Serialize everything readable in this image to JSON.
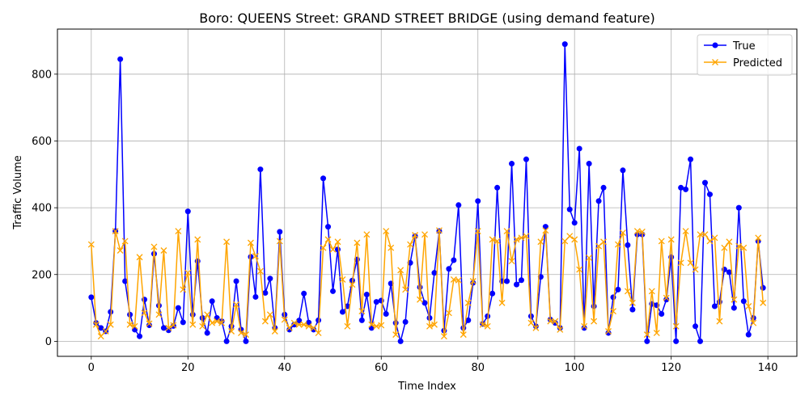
{
  "colors": {
    "true_series": "#0000ff",
    "predicted_series": "#ffa500",
    "grid": "#b0b0b0"
  },
  "chart_data": {
    "type": "line",
    "title": "Boro: QUEENS Street: GRAND STREET BRIDGE (using demand feature)",
    "xlabel": "Time Index",
    "ylabel": "Traffic Volume",
    "xlim": [
      -7,
      146
    ],
    "ylim": [
      -45,
      935
    ],
    "xticks": [
      0,
      20,
      40,
      60,
      80,
      100,
      120,
      140
    ],
    "yticks": [
      0,
      200,
      400,
      600,
      800
    ],
    "grid": true,
    "legend_position": "top-right",
    "series": [
      {
        "name": "True",
        "marker": "circle",
        "color": "#0000ff",
        "values": [
          132,
          55,
          40,
          30,
          88,
          330,
          845,
          180,
          80,
          35,
          15,
          125,
          48,
          262,
          107,
          40,
          33,
          46,
          100,
          57,
          389,
          80,
          240,
          70,
          25,
          120,
          70,
          60,
          0,
          45,
          180,
          35,
          0,
          253,
          133,
          515,
          145,
          188,
          40,
          328,
          80,
          35,
          50,
          62,
          143,
          56,
          35,
          63,
          488,
          343,
          150,
          275,
          88,
          105,
          182,
          245,
          63,
          140,
          40,
          118,
          122,
          82,
          173,
          55,
          0,
          58,
          235,
          315,
          162,
          115,
          70,
          205,
          330,
          32,
          217,
          243,
          408,
          40,
          63,
          175,
          420,
          52,
          75,
          143,
          460,
          180,
          180,
          532,
          170,
          183,
          545,
          75,
          45,
          193,
          343,
          65,
          55,
          40,
          890,
          395,
          355,
          577,
          40,
          532,
          105,
          420,
          460,
          25,
          132,
          155,
          512,
          288,
          95,
          320,
          320,
          0,
          112,
          108,
          82,
          125,
          252,
          0,
          460,
          455,
          545,
          45,
          0,
          475,
          440,
          105,
          118,
          215,
          207,
          100,
          400,
          120,
          20,
          70,
          300,
          160
        ]
      },
      {
        "name": "Predicted",
        "marker": "x",
        "color": "#ffa500",
        "values": [
          290,
          50,
          15,
          30,
          50,
          330,
          272,
          300,
          50,
          45,
          252,
          85,
          53,
          283,
          80,
          272,
          40,
          48,
          330,
          155,
          205,
          50,
          305,
          45,
          80,
          55,
          60,
          55,
          298,
          30,
          110,
          25,
          20,
          295,
          255,
          210,
          60,
          80,
          30,
          300,
          65,
          40,
          55,
          50,
          50,
          45,
          40,
          25,
          280,
          305,
          275,
          298,
          185,
          45,
          170,
          295,
          90,
          320,
          50,
          45,
          48,
          330,
          280,
          20,
          213,
          155,
          290,
          318,
          125,
          320,
          45,
          50,
          332,
          15,
          85,
          185,
          183,
          20,
          115,
          180,
          330,
          50,
          45,
          305,
          300,
          115,
          330,
          240,
          305,
          310,
          315,
          55,
          40,
          298,
          332,
          60,
          60,
          35,
          300,
          315,
          305,
          215,
          45,
          250,
          60,
          285,
          298,
          30,
          90,
          290,
          325,
          150,
          115,
          330,
          328,
          20,
          150,
          25,
          300,
          130,
          305,
          45,
          235,
          330,
          235,
          215,
          320,
          320,
          300,
          310,
          60,
          280,
          298,
          125,
          285,
          280,
          105,
          55,
          310,
          115
        ]
      }
    ]
  }
}
